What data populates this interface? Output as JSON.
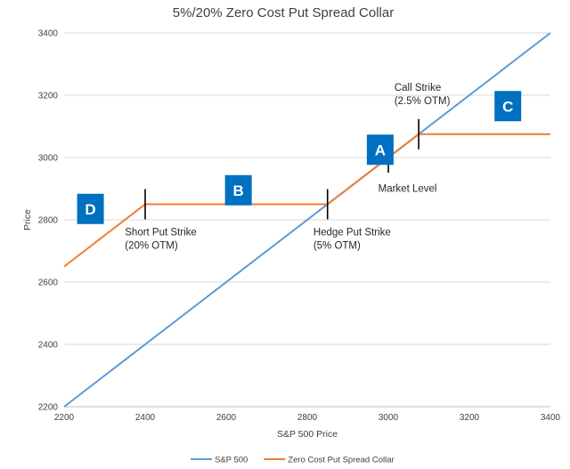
{
  "chart_data": {
    "type": "line",
    "title": "5%/20% Zero Cost Put Spread Collar",
    "xlabel": "S&P 500 Price",
    "ylabel": "Price",
    "xlim": [
      2200,
      3400
    ],
    "ylim": [
      2200,
      3400
    ],
    "xticks": [
      2200,
      2400,
      2600,
      2800,
      3000,
      3200,
      3400
    ],
    "yticks": [
      2200,
      2400,
      2600,
      2800,
      3000,
      3200,
      3400
    ],
    "grid": "horizontal",
    "legend_position": "bottom",
    "series": [
      {
        "name": "S&P 500",
        "color": "#5b9bd5",
        "points": [
          [
            2200,
            2200
          ],
          [
            3400,
            3400
          ]
        ]
      },
      {
        "name": "Zero Cost Put Spread Collar",
        "color": "#ed7d31",
        "points": [
          [
            2200,
            2650
          ],
          [
            2400,
            2850
          ],
          [
            2850,
            2850
          ],
          [
            3075,
            3075
          ],
          [
            3400,
            3075
          ]
        ]
      }
    ],
    "markers": [
      {
        "x": 2400,
        "y": 2850
      },
      {
        "x": 2850,
        "y": 2850
      },
      {
        "x": 3000,
        "y": 3000
      },
      {
        "x": 3075,
        "y": 3075
      }
    ],
    "annotations": [
      {
        "lines": [
          "Short Put Strike",
          "(20% OTM)"
        ],
        "x": 2350,
        "y": 2750
      },
      {
        "lines": [
          "Hedge Put Strike",
          "(5% OTM)"
        ],
        "x": 2815,
        "y": 2750
      },
      {
        "lines": [
          "Market Level"
        ],
        "x": 2975,
        "y": 2890
      },
      {
        "lines": [
          "Call Strike",
          "(2.5% OTM)"
        ],
        "x": 3015,
        "y": 3215
      }
    ],
    "region_labels": [
      {
        "label": "A",
        "x": 2980,
        "y": 3025
      },
      {
        "label": "B",
        "x": 2630,
        "y": 2895
      },
      {
        "label": "C",
        "x": 3295,
        "y": 3165
      },
      {
        "label": "D",
        "x": 2265,
        "y": 2835
      }
    ],
    "label_box_color": "#0070c0"
  }
}
